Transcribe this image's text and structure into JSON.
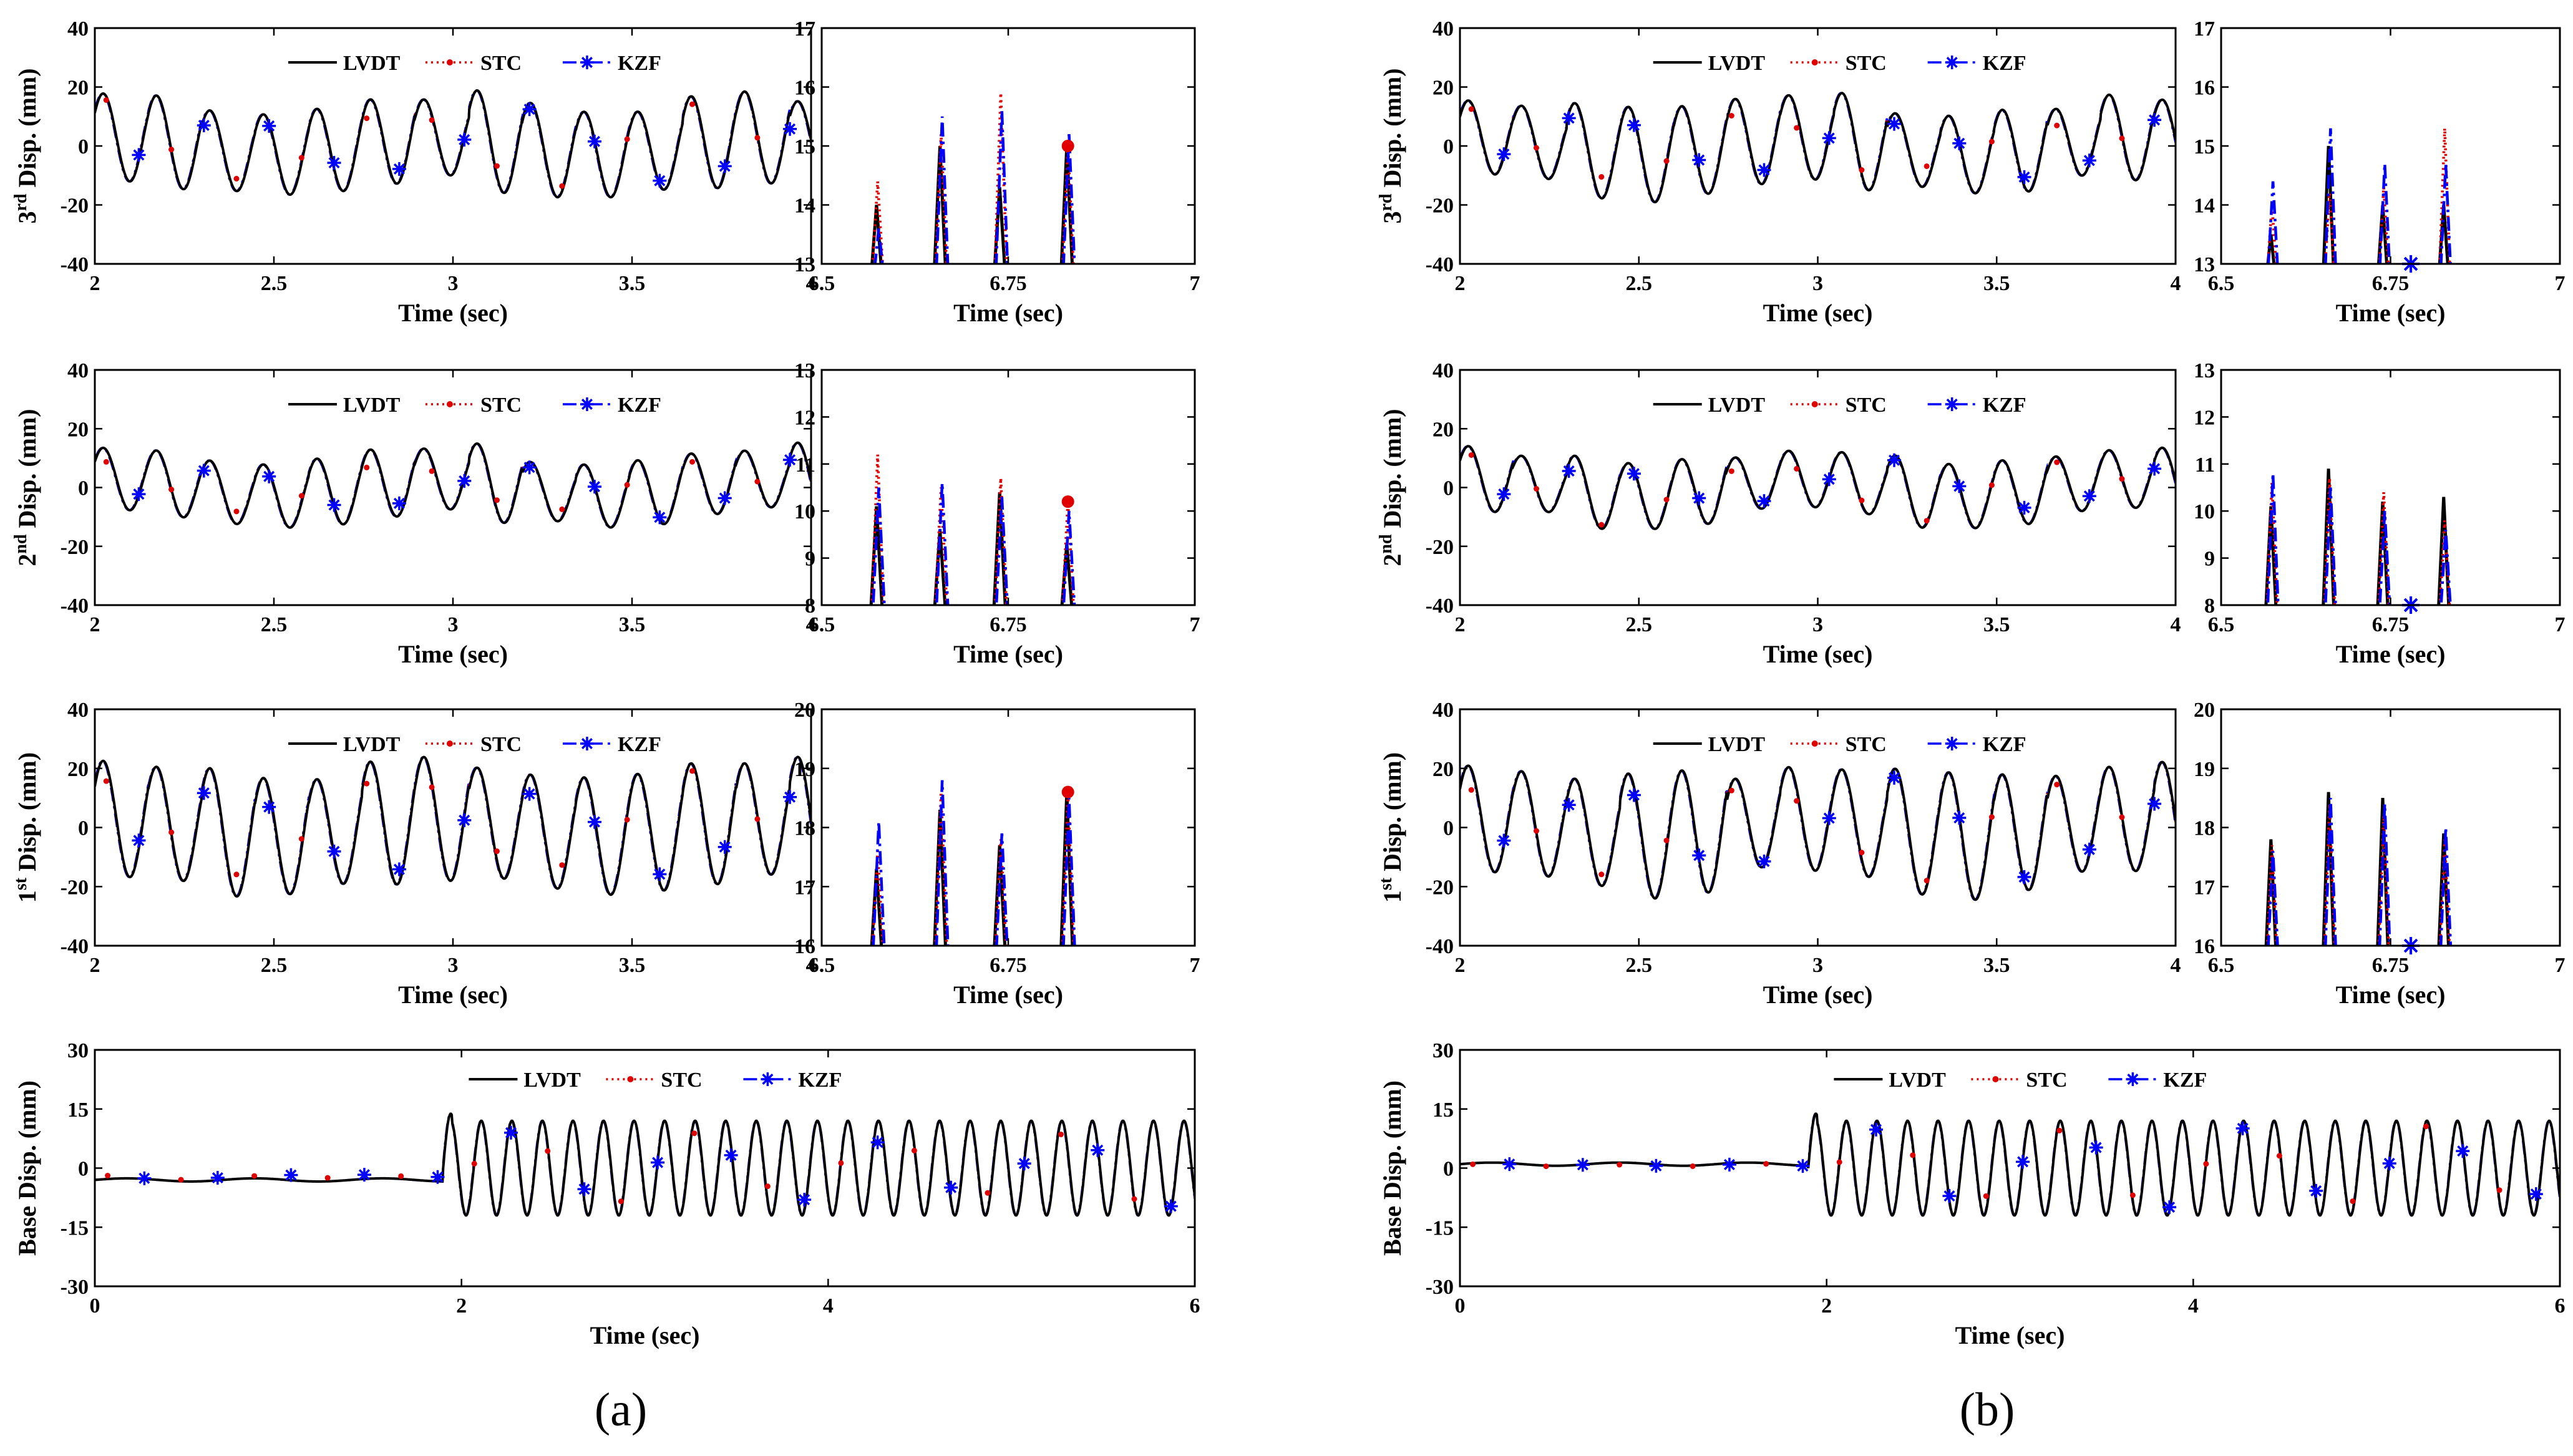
{
  "figure": {
    "panel_a_label": "(a)",
    "panel_b_label": "(b)"
  },
  "legend": {
    "lvdt": "LVDT",
    "stc": "STC",
    "kzf": "KZF"
  },
  "colors": {
    "lvdt": "#000000",
    "stc": "#e00000",
    "kzf": "#0000ff"
  },
  "chart_data": [
    {
      "id": "a-3rd-main",
      "type": "line",
      "xlabel": "Time (sec)",
      "ylabel": "3rd Disp. (mm)",
      "ylabel_base": "Disp. (mm)",
      "ylabel_num": "3",
      "ylabel_sup": "rd",
      "xlim": [
        2,
        4
      ],
      "ylim": [
        -40,
        40
      ],
      "xticks": [
        "2",
        "2.5",
        "3",
        "3.5",
        "4"
      ],
      "yticks": [
        "-40",
        "-20",
        "0",
        "20",
        "40"
      ],
      "legend": [
        "LVDT",
        "STC",
        "KZF"
      ],
      "series": [
        {
          "name": "LVDT",
          "amplitude_mm": 16,
          "freq_hz": 6.7
        },
        {
          "name": "STC",
          "amplitude_mm": 16
        },
        {
          "name": "KZF",
          "amplitude_mm": 16
        }
      ]
    },
    {
      "id": "a-3rd-zoom",
      "type": "line",
      "xlabel": "Time (sec)",
      "xlim": [
        6.5,
        7
      ],
      "ylim": [
        13,
        17
      ],
      "xticks": [
        "6.5",
        "6.75",
        "7"
      ],
      "yticks": [
        "13",
        "14",
        "15",
        "16",
        "17"
      ],
      "series": [
        {
          "name": "LVDT",
          "peaks_x": [
            6.575,
            6.66,
            6.74,
            6.83
          ],
          "peaks_y": [
            14.0,
            15.0,
            14.3,
            15.0
          ]
        },
        {
          "name": "STC",
          "peaks_y": [
            14.4,
            15.2,
            15.9,
            15.0
          ]
        },
        {
          "name": "KZF",
          "peaks_y": [
            13.6,
            15.5,
            15.6,
            15.2
          ]
        }
      ]
    },
    {
      "id": "a-2nd-main",
      "type": "line",
      "xlabel": "Time (sec)",
      "ylabel": "2nd Disp. (mm)",
      "ylabel_base": "Disp. (mm)",
      "ylabel_num": "2",
      "ylabel_sup": "nd",
      "xlim": [
        2,
        4
      ],
      "ylim": [
        -40,
        40
      ],
      "xticks": [
        "2",
        "2.5",
        "3",
        "3.5",
        "4"
      ],
      "yticks": [
        "-40",
        "-20",
        "0",
        "20",
        "40"
      ],
      "legend": [
        "LVDT",
        "STC",
        "KZF"
      ],
      "series": [
        {
          "name": "LVDT",
          "amplitude_mm": 12,
          "freq_hz": 6.7
        },
        {
          "name": "STC",
          "amplitude_mm": 12
        },
        {
          "name": "KZF",
          "amplitude_mm": 12
        }
      ]
    },
    {
      "id": "a-2nd-zoom",
      "type": "line",
      "xlabel": "Time (sec)",
      "xlim": [
        6.5,
        7
      ],
      "ylim": [
        8,
        13
      ],
      "xticks": [
        "6.5",
        "6.75",
        "7"
      ],
      "yticks": [
        "8",
        "9",
        "10",
        "11",
        "12",
        "13"
      ],
      "series": [
        {
          "name": "LVDT",
          "peaks_x": [
            6.575,
            6.66,
            6.74,
            6.83
          ],
          "peaks_y": [
            10.1,
            9.6,
            10.4,
            9.3
          ]
        },
        {
          "name": "STC",
          "peaks_y": [
            11.2,
            10.5,
            10.7,
            10.2
          ]
        },
        {
          "name": "KZF",
          "peaks_y": [
            10.5,
            10.6,
            10.3,
            10.0
          ]
        }
      ]
    },
    {
      "id": "a-1st-main",
      "type": "line",
      "xlabel": "Time (sec)",
      "ylabel": "1st Disp. (mm)",
      "ylabel_base": "Disp. (mm)",
      "ylabel_num": "1",
      "ylabel_sup": "st",
      "xlim": [
        2,
        4
      ],
      "ylim": [
        -40,
        40
      ],
      "xticks": [
        "2",
        "2.5",
        "3",
        "3.5",
        "4"
      ],
      "yticks": [
        "-40",
        "-20",
        "0",
        "20",
        "40"
      ],
      "legend": [
        "LVDT",
        "STC",
        "KZF"
      ],
      "series": [
        {
          "name": "LVDT",
          "amplitude_mm": 20,
          "freq_hz": 6.7
        },
        {
          "name": "STC",
          "amplitude_mm": 20
        },
        {
          "name": "KZF",
          "amplitude_mm": 20
        }
      ]
    },
    {
      "id": "a-1st-zoom",
      "type": "line",
      "xlabel": "Time (sec)",
      "xlim": [
        6.5,
        7
      ],
      "ylim": [
        16,
        20
      ],
      "xticks": [
        "6.5",
        "6.75",
        "7"
      ],
      "yticks": [
        "16",
        "17",
        "18",
        "19",
        "20"
      ],
      "series": [
        {
          "name": "LVDT",
          "peaks_x": [
            6.575,
            6.66,
            6.74,
            6.83
          ],
          "peaks_y": [
            17.3,
            18.3,
            17.7,
            18.6
          ]
        },
        {
          "name": "STC",
          "peaks_y": [
            17.6,
            18.6,
            17.8,
            18.6
          ]
        },
        {
          "name": "KZF",
          "peaks_y": [
            18.1,
            18.8,
            17.9,
            18.5
          ]
        }
      ]
    },
    {
      "id": "a-base",
      "type": "line",
      "xlabel": "Time (sec)",
      "ylabel": "Base Disp. (mm)",
      "xlim": [
        0,
        6
      ],
      "ylim": [
        -30,
        30
      ],
      "xticks": [
        "0",
        "2",
        "4",
        "6"
      ],
      "yticks": [
        "-30",
        "-15",
        "0",
        "15",
        "30"
      ],
      "legend": [
        "LVDT",
        "STC",
        "KZF"
      ],
      "series": [
        {
          "name": "LVDT",
          "offset_before_1p9s": -3,
          "amplitude_after_1p9s": 12,
          "freq_hz": 6.0
        },
        {
          "name": "STC"
        },
        {
          "name": "KZF"
        }
      ]
    },
    {
      "id": "b-3rd-main",
      "type": "line",
      "xlabel": "Time (sec)",
      "ylabel": "3rd Disp. (mm)",
      "ylabel_base": "Disp. (mm)",
      "ylabel_num": "3",
      "ylabel_sup": "rd",
      "xlim": [
        2,
        4
      ],
      "ylim": [
        -40,
        40
      ],
      "xticks": [
        "2",
        "2.5",
        "3",
        "3.5",
        "4"
      ],
      "yticks": [
        "-40",
        "-20",
        "0",
        "20",
        "40"
      ],
      "legend": [
        "LVDT",
        "STC",
        "KZF"
      ],
      "series": [
        {
          "name": "LVDT",
          "amplitude_mm": 15,
          "freq_hz": 6.7
        },
        {
          "name": "STC",
          "amplitude_mm": 15
        },
        {
          "name": "KZF",
          "amplitude_mm": 15
        }
      ]
    },
    {
      "id": "b-3rd-zoom",
      "type": "line",
      "xlabel": "Time (sec)",
      "xlim": [
        6.5,
        7
      ],
      "ylim": [
        13,
        17
      ],
      "xticks": [
        "6.5",
        "6.75",
        "7"
      ],
      "yticks": [
        "13",
        "14",
        "15",
        "16",
        "17"
      ],
      "series": [
        {
          "name": "LVDT",
          "peaks_x": [
            6.575,
            6.66,
            6.74,
            6.83
          ],
          "peaks_y": [
            13.5,
            15.0,
            14.0,
            14.0
          ]
        },
        {
          "name": "STC",
          "peaks_y": [
            14.0,
            14.2,
            14.3,
            15.3
          ]
        },
        {
          "name": "KZF",
          "peaks_y": [
            14.4,
            15.3,
            14.7,
            14.7
          ]
        }
      ]
    },
    {
      "id": "b-2nd-main",
      "type": "line",
      "xlabel": "Time (sec)",
      "ylabel": "2nd Disp. (mm)",
      "ylabel_base": "Disp. (mm)",
      "ylabel_num": "2",
      "ylabel_sup": "nd",
      "xlim": [
        2,
        4
      ],
      "ylim": [
        -40,
        40
      ],
      "xticks": [
        "2",
        "2.5",
        "3",
        "3.5",
        "4"
      ],
      "yticks": [
        "-40",
        "-20",
        "0",
        "20",
        "40"
      ],
      "legend": [
        "LVDT",
        "STC",
        "KZF"
      ],
      "series": [
        {
          "name": "LVDT",
          "amplitude_mm": 11,
          "freq_hz": 6.7
        },
        {
          "name": "STC",
          "amplitude_mm": 11
        },
        {
          "name": "KZF",
          "amplitude_mm": 11
        }
      ]
    },
    {
      "id": "b-2nd-zoom",
      "type": "line",
      "xlabel": "Time (sec)",
      "xlim": [
        6.5,
        7
      ],
      "ylim": [
        8,
        13
      ],
      "xticks": [
        "6.5",
        "6.75",
        "7"
      ],
      "yticks": [
        "8",
        "9",
        "10",
        "11",
        "12",
        "13"
      ],
      "series": [
        {
          "name": "LVDT",
          "peaks_x": [
            6.575,
            6.66,
            6.74,
            6.83
          ],
          "peaks_y": [
            10.1,
            10.9,
            10.2,
            10.3
          ]
        },
        {
          "name": "STC",
          "peaks_y": [
            10.6,
            10.7,
            10.4,
            9.8
          ]
        },
        {
          "name": "KZF",
          "peaks_y": [
            10.8,
            10.5,
            10.0,
            9.6
          ]
        }
      ]
    },
    {
      "id": "b-1st-main",
      "type": "line",
      "xlabel": "Time (sec)",
      "ylabel": "1st Disp. (mm)",
      "ylabel_base": "Disp. (mm)",
      "ylabel_num": "1",
      "ylabel_sup": "st",
      "xlim": [
        2,
        4
      ],
      "ylim": [
        -40,
        40
      ],
      "xticks": [
        "2",
        "2.5",
        "3",
        "3.5",
        "4"
      ],
      "yticks": [
        "-40",
        "-20",
        "0",
        "20",
        "40"
      ],
      "legend": [
        "LVDT",
        "STC",
        "KZF"
      ],
      "series": [
        {
          "name": "LVDT",
          "amplitude_mm": 20,
          "freq_hz": 6.7
        },
        {
          "name": "STC",
          "amplitude_mm": 20
        },
        {
          "name": "KZF",
          "amplitude_mm": 20
        }
      ]
    },
    {
      "id": "b-1st-zoom",
      "type": "line",
      "xlabel": "Time (sec)",
      "xlim": [
        6.5,
        7
      ],
      "ylim": [
        16,
        20
      ],
      "xticks": [
        "6.5",
        "6.75",
        "7"
      ],
      "yticks": [
        "16",
        "17",
        "18",
        "19",
        "20"
      ],
      "series": [
        {
          "name": "LVDT",
          "peaks_x": [
            6.575,
            6.66,
            6.74,
            6.83
          ],
          "peaks_y": [
            17.8,
            18.6,
            18.5,
            17.9
          ]
        },
        {
          "name": "STC",
          "peaks_y": [
            17.7,
            18.4,
            18.2,
            17.8
          ]
        },
        {
          "name": "KZF",
          "peaks_y": [
            17.6,
            18.5,
            18.4,
            18.0
          ]
        }
      ]
    },
    {
      "id": "b-base",
      "type": "line",
      "xlabel": "Time (sec)",
      "ylabel": "Base Disp. (mm)",
      "xlim": [
        0,
        6
      ],
      "ylim": [
        -30,
        30
      ],
      "xticks": [
        "0",
        "2",
        "4",
        "6"
      ],
      "yticks": [
        "-30",
        "-15",
        "0",
        "15",
        "30"
      ],
      "legend": [
        "LVDT",
        "STC",
        "KZF"
      ],
      "series": [
        {
          "name": "LVDT",
          "offset_before_1p9s": 1,
          "amplitude_after_1p9s": 12,
          "freq_hz": 6.0
        },
        {
          "name": "STC"
        },
        {
          "name": "KZF"
        }
      ]
    }
  ]
}
